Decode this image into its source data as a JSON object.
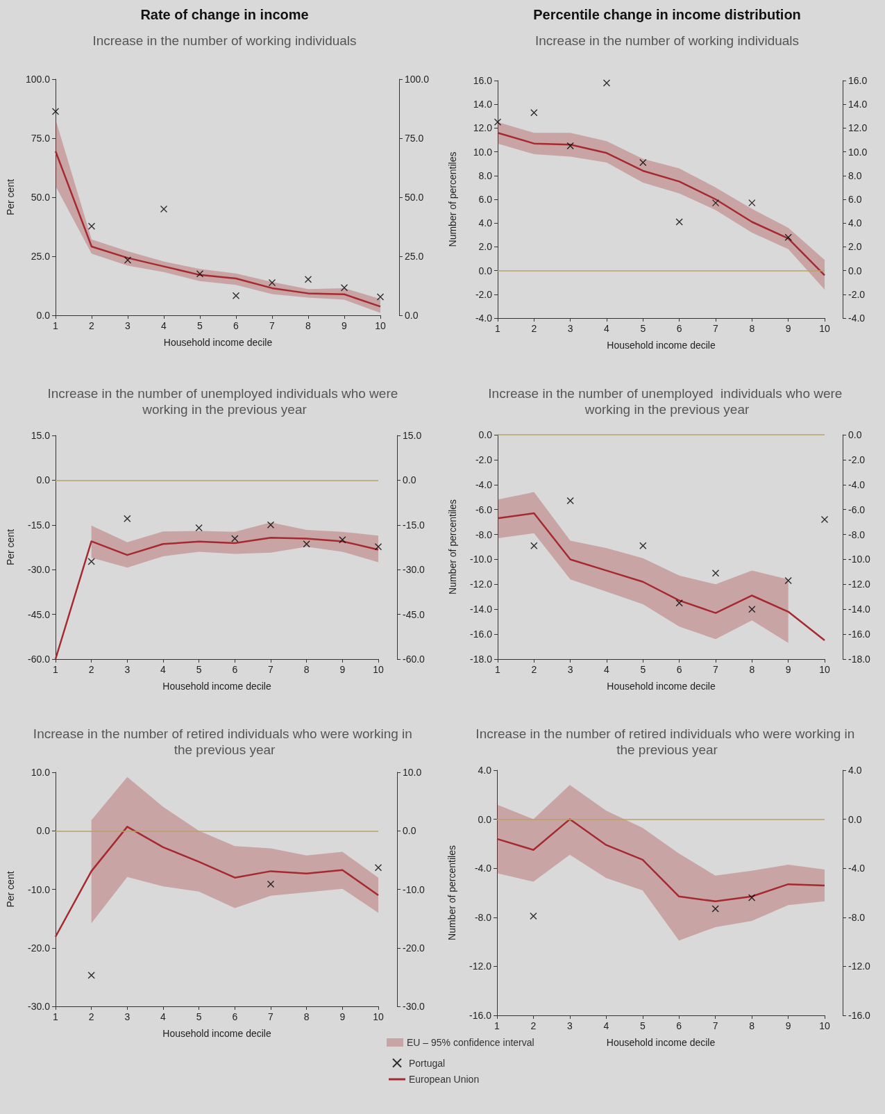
{
  "chart_data": [
    {
      "type": "line",
      "title": "Rate of change in income",
      "subtitle": "Increase in the number of working individuals",
      "xlabel": "Household income decile",
      "ylabel": "Per cent",
      "categories": [
        "1",
        "2",
        "3",
        "4",
        "5",
        "6",
        "7",
        "8",
        "9",
        "10"
      ],
      "ylim": [
        0,
        100
      ],
      "yticks": [
        {
          "value": 0,
          "label": "0.0"
        },
        {
          "value": 25,
          "label": "25.0"
        },
        {
          "value": 50,
          "label": "50.0"
        },
        {
          "value": 75,
          "label": "75.0"
        },
        {
          "value": 100,
          "label": "100.0"
        }
      ],
      "y2lim": [
        0,
        100
      ],
      "y2ticks": [
        {
          "value": 0,
          "label": "0.0"
        },
        {
          "value": 25,
          "label": "25.0"
        },
        {
          "value": 50,
          "label": "50.0"
        },
        {
          "value": 75,
          "label": "75.0"
        },
        {
          "value": 100,
          "label": "100.0"
        }
      ],
      "grid": false,
      "series": [
        {
          "type": "line",
          "color": "#a52a2f",
          "values": [
            69.5,
            29.1,
            24.3,
            20.7,
            17.1,
            15.6,
            11.5,
            9.3,
            8.9,
            3.7
          ],
          "lower": [
            54.8,
            26.1,
            21,
            18.3,
            14.5,
            12.9,
            9,
            7.5,
            6.6,
            1
          ],
          "upper": [
            83,
            32.1,
            27.1,
            22.8,
            19.6,
            17.7,
            14.1,
            11.1,
            11.5,
            6.9
          ]
        },
        {
          "type": "scatter",
          "color": "#000000",
          "marker": "cross",
          "values": [
            86.3,
            37.7,
            23.4,
            45,
            17.6,
            8.3,
            13.8,
            15.2,
            11.7,
            7.8
          ]
        }
      ]
    },
    {
      "type": "line",
      "title": "Percentile change in income distribution",
      "subtitle": "Increase in the number of working individuals",
      "xlabel": "Household income decile",
      "ylabel": "Number of percentiles",
      "categories": [
        "1",
        "2",
        "3",
        "4",
        "5",
        "6",
        "7",
        "8",
        "9",
        "10"
      ],
      "ylim": [
        -4,
        16
      ],
      "yticks": [
        {
          "value": -4,
          "label": "-4.0"
        },
        {
          "value": -2,
          "label": "-2.0"
        },
        {
          "value": 0,
          "label": "0.0"
        },
        {
          "value": 2,
          "label": "2.0"
        },
        {
          "value": 4,
          "label": "4.0"
        },
        {
          "value": 6,
          "label": "6.0"
        },
        {
          "value": 8,
          "label": "8.0"
        },
        {
          "value": 10,
          "label": "10.0"
        },
        {
          "value": 12,
          "label": "12.0"
        },
        {
          "value": 14,
          "label": "14.0"
        },
        {
          "value": 16,
          "label": "16.0"
        }
      ],
      "y2lim": [
        -4,
        16
      ],
      "y2ticks": [
        {
          "value": -4,
          "label": "-4.0"
        },
        {
          "value": -2,
          "label": "-2.0"
        },
        {
          "value": 0,
          "label": "0.0"
        },
        {
          "value": 2,
          "label": "2.0"
        },
        {
          "value": 4,
          "label": "4.0"
        },
        {
          "value": 6,
          "label": "6.0"
        },
        {
          "value": 8,
          "label": "8.0"
        },
        {
          "value": 10,
          "label": "10.0"
        },
        {
          "value": 12,
          "label": "12.0"
        },
        {
          "value": 14,
          "label": "14.0"
        },
        {
          "value": 16,
          "label": "16.0"
        }
      ],
      "grid": false,
      "ref_lines": [
        {
          "axis": "y",
          "value": 0,
          "color": "#b8a06a"
        }
      ],
      "series": [
        {
          "type": "line",
          "color": "#a52a2f",
          "values": [
            11.6,
            10.7,
            10.6,
            9.9,
            8.4,
            7.5,
            6.0,
            4.1,
            2.7,
            -0.4
          ],
          "lower": [
            10.7,
            9.8,
            9.6,
            9.1,
            7.4,
            6.5,
            5.1,
            3.2,
            1.8,
            -1.6
          ],
          "upper": [
            12.5,
            11.6,
            11.6,
            10.9,
            9.4,
            8.6,
            7.0,
            5.2,
            3.6,
            0.9
          ]
        },
        {
          "type": "scatter",
          "color": "#000000",
          "marker": "cross",
          "values": [
            12.5,
            13.3,
            10.5,
            15.8,
            9.1,
            4.1,
            5.7,
            5.7,
            2.8,
            null
          ]
        }
      ]
    },
    {
      "type": "line",
      "subtitle": "Increase in the number of unemployed individuals who were working in the previous year",
      "xlabel": "Household income decile",
      "ylabel": "Per cent",
      "categories": [
        "1",
        "2",
        "3",
        "4",
        "5",
        "6",
        "7",
        "8",
        "9",
        "10"
      ],
      "ylim": [
        -60,
        15
      ],
      "yticks": [
        {
          "value": -60,
          "label": "-60.0"
        },
        {
          "value": -45,
          "label": "-45.0"
        },
        {
          "value": -30,
          "label": "-30.0"
        },
        {
          "value": -15,
          "label": "-15.0"
        },
        {
          "value": 0,
          "label": "0.0"
        },
        {
          "value": 15,
          "label": "15.0"
        }
      ],
      "y2lim": [
        -60,
        15
      ],
      "y2ticks": [
        {
          "value": -60,
          "label": "-60.0"
        },
        {
          "value": -45,
          "label": "-45.0"
        },
        {
          "value": -30,
          "label": "-30.0"
        },
        {
          "value": -15,
          "label": "-15.0"
        },
        {
          "value": 0,
          "label": "0.0"
        },
        {
          "value": 15,
          "label": "15.0"
        }
      ],
      "grid": false,
      "ref_lines": [
        {
          "axis": "y",
          "value": 0,
          "color": "#b8a06a"
        }
      ],
      "series": [
        {
          "type": "line",
          "color": "#a52a2f",
          "values": [
            -60,
            -20.5,
            -25.1,
            -21.4,
            -20.6,
            -21.1,
            -19.3,
            -19.6,
            -20.5,
            -23.3
          ],
          "lower": [
            null,
            -26,
            -29.3,
            -25.5,
            -24,
            -24.7,
            -24.3,
            -22.3,
            -24,
            -27.5
          ],
          "upper": [
            null,
            -15.2,
            -20.8,
            -17.2,
            -17,
            -17.3,
            -14.2,
            -16.7,
            -17.3,
            -18.6
          ]
        },
        {
          "type": "scatter",
          "color": "#000000",
          "marker": "cross",
          "values": [
            null,
            -27.3,
            -12.9,
            null,
            -16,
            -19.6,
            -15,
            -21.4,
            -20,
            -22.3
          ]
        }
      ]
    },
    {
      "type": "line",
      "subtitle": "Increase in the number of unemployed  individuals who were working in the previous year",
      "xlabel": "Household income decile",
      "ylabel": "Number of percentiles",
      "categories": [
        "1",
        "2",
        "3",
        "4",
        "5",
        "6",
        "7",
        "8",
        "9",
        "10"
      ],
      "ylim": [
        -18,
        0
      ],
      "yticks": [
        {
          "value": -18,
          "label": "-18.0"
        },
        {
          "value": -16,
          "label": "-16.0"
        },
        {
          "value": -14,
          "label": "-14.0"
        },
        {
          "value": -12,
          "label": "-12.0"
        },
        {
          "value": -10,
          "label": "-10.0"
        },
        {
          "value": -8,
          "label": "-8.0"
        },
        {
          "value": -6,
          "label": "-6.0"
        },
        {
          "value": -4,
          "label": "-4.0"
        },
        {
          "value": -2,
          "label": "-2.0"
        },
        {
          "value": 0,
          "label": "0.0"
        }
      ],
      "y2lim": [
        -18,
        0
      ],
      "y2ticks": [
        {
          "value": -18,
          "label": "-18.0"
        },
        {
          "value": -16,
          "label": "-16.0"
        },
        {
          "value": -14,
          "label": "-14.0"
        },
        {
          "value": -12,
          "label": "-12.0"
        },
        {
          "value": -10,
          "label": "-10.0"
        },
        {
          "value": -8,
          "label": "-8.0"
        },
        {
          "value": -6,
          "label": "-6.0"
        },
        {
          "value": -4,
          "label": "-4.0"
        },
        {
          "value": -2,
          "label": "-2.0"
        },
        {
          "value": 0,
          "label": "0.0"
        }
      ],
      "grid": false,
      "ref_lines": [
        {
          "axis": "y",
          "value": 0,
          "color": "#b8a06a"
        }
      ],
      "series": [
        {
          "type": "line",
          "color": "#a52a2f",
          "values": [
            -6.7,
            -6.3,
            -10.0,
            -10.9,
            -11.8,
            -13.3,
            -14.3,
            -12.9,
            -14.2,
            -16.5
          ],
          "lower": [
            -8.3,
            -7.9,
            -11.6,
            -12.6,
            -13.6,
            -15.4,
            -16.4,
            -14.9,
            -16.7,
            null
          ],
          "upper": [
            -5.2,
            -4.6,
            -8.5,
            -9.1,
            -9.9,
            -11.3,
            -12.0,
            -10.9,
            -11.6,
            null
          ]
        },
        {
          "type": "scatter",
          "color": "#000000",
          "marker": "cross",
          "values": [
            null,
            -8.9,
            -5.3,
            null,
            -8.9,
            -13.5,
            -11.1,
            -14.0,
            -11.7,
            -6.8
          ]
        }
      ]
    },
    {
      "type": "line",
      "subtitle": "Increase in the number of retired individuals who were working in the previous year",
      "xlabel": "Household income decile",
      "ylabel": "Per cent",
      "categories": [
        "1",
        "2",
        "3",
        "4",
        "5",
        "6",
        "7",
        "8",
        "9",
        "10"
      ],
      "ylim": [
        -30,
        10
      ],
      "yticks": [
        {
          "value": -30,
          "label": "-30.0"
        },
        {
          "value": -20,
          "label": "-20.0"
        },
        {
          "value": -10,
          "label": "-10.0"
        },
        {
          "value": 0,
          "label": "0.0"
        },
        {
          "value": 10,
          "label": "10.0"
        }
      ],
      "y2lim": [
        -30,
        10
      ],
      "y2ticks": [
        {
          "value": -30,
          "label": "-30.0"
        },
        {
          "value": -20,
          "label": "-20.0"
        },
        {
          "value": -10,
          "label": "-10.0"
        },
        {
          "value": 0,
          "label": "0.0"
        },
        {
          "value": 10,
          "label": "10.0"
        }
      ],
      "grid": false,
      "ref_lines": [
        {
          "axis": "y",
          "value": 0,
          "color": "#b8a06a"
        }
      ],
      "series": [
        {
          "type": "line",
          "color": "#a52a2f",
          "values": [
            -18.1,
            -6.9,
            0.7,
            -2.8,
            -5.3,
            -8.0,
            -6.9,
            -7.3,
            -6.7,
            -11.0
          ],
          "lower": [
            null,
            -15.8,
            -7.9,
            -9.5,
            -10.4,
            -13.2,
            -11.1,
            -10.5,
            -9.9,
            -14.0
          ],
          "upper": [
            null,
            1.8,
            9.2,
            4.1,
            0,
            -2.6,
            -3.0,
            -4.2,
            -3.6,
            -8.0
          ]
        },
        {
          "type": "scatter",
          "color": "#000000",
          "marker": "cross",
          "values": [
            null,
            -24.7,
            null,
            null,
            null,
            null,
            -9.1,
            null,
            null,
            -6.3
          ]
        }
      ]
    },
    {
      "type": "line",
      "subtitle": "Increase in the number of retired individuals who were working in the previous year",
      "xlabel": "Household income decile",
      "ylabel": "Number of percentiles",
      "categories": [
        "1",
        "2",
        "3",
        "4",
        "5",
        "6",
        "7",
        "8",
        "9",
        "10"
      ],
      "ylim": [
        -16,
        4
      ],
      "yticks": [
        {
          "value": -16,
          "label": "-16.0"
        },
        {
          "value": -12,
          "label": "-12.0"
        },
        {
          "value": -8,
          "label": "-8.0"
        },
        {
          "value": -4,
          "label": "-4.0"
        },
        {
          "value": 0,
          "label": "0.0"
        },
        {
          "value": 4,
          "label": "4.0"
        }
      ],
      "y2lim": [
        -16,
        4
      ],
      "y2ticks": [
        {
          "value": -16,
          "label": "-16.0"
        },
        {
          "value": -12,
          "label": "-12.0"
        },
        {
          "value": -8,
          "label": "-8.0"
        },
        {
          "value": -4,
          "label": "-4.0"
        },
        {
          "value": 0,
          "label": "0.0"
        },
        {
          "value": 4,
          "label": "4.0"
        }
      ],
      "grid": false,
      "legend": "bottom",
      "annotations": [
        "EU – 95% confidence interval"
      ],
      "ref_lines": [
        {
          "axis": "y",
          "value": 0,
          "color": "#b8a06a"
        }
      ],
      "series": [
        {
          "name": "Portugal",
          "type": "scatter",
          "color": "#000000",
          "marker": "cross",
          "values": [
            null,
            -7.9,
            null,
            null,
            null,
            null,
            -7.3,
            -6.4,
            null,
            null
          ]
        },
        {
          "name": "European Union",
          "type": "line",
          "color": "#a52a2f",
          "values": [
            -1.6,
            -2.5,
            0.0,
            -2.1,
            -3.3,
            -6.3,
            -6.7,
            -6.3,
            -5.3,
            -5.4
          ],
          "lower": [
            -4.4,
            -5.1,
            -2.9,
            -4.8,
            -5.8,
            -9.9,
            -8.8,
            -8.3,
            -7.0,
            -6.7
          ],
          "upper": [
            1.2,
            0.0,
            2.8,
            0.7,
            -0.7,
            -2.8,
            -4.6,
            -4.2,
            -3.7,
            -4.1
          ]
        }
      ]
    }
  ]
}
